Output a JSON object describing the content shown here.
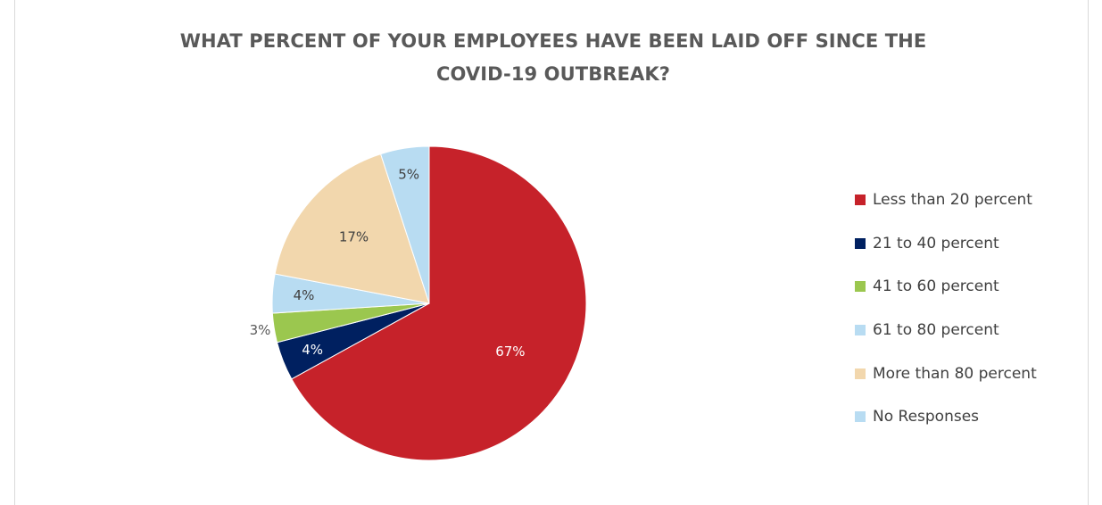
{
  "chart_data": {
    "type": "pie",
    "title_lines": [
      "WHAT PERCENT OF YOUR EMPLOYEES HAVE BEEN LAID OFF SINCE THE",
      "COVID-19 OUTBREAK?"
    ],
    "legend_position": "right",
    "slices": [
      {
        "label": "Less than 20 percent",
        "value": 67,
        "display": "67%",
        "color": "#c6222a",
        "label_color": "#ffffff"
      },
      {
        "label": "21 to 40 percent",
        "value": 4,
        "display": "4%",
        "color": "#002060",
        "label_color": "#ffffff"
      },
      {
        "label": "41 to 60 percent",
        "value": 3,
        "display": "3%",
        "color": "#9bc74f",
        "label_color": "#595959"
      },
      {
        "label": "61 to 80 percent",
        "value": 4,
        "display": "4%",
        "color": "#b8dcf2",
        "label_color": "#404040"
      },
      {
        "label": "More than 80 percent",
        "value": 17,
        "display": "17%",
        "color": "#f2d7ad",
        "label_color": "#404040"
      },
      {
        "label": "No Responses",
        "value": 5,
        "display": "5%",
        "color": "#b8dcf2",
        "label_color": "#404040"
      }
    ]
  }
}
